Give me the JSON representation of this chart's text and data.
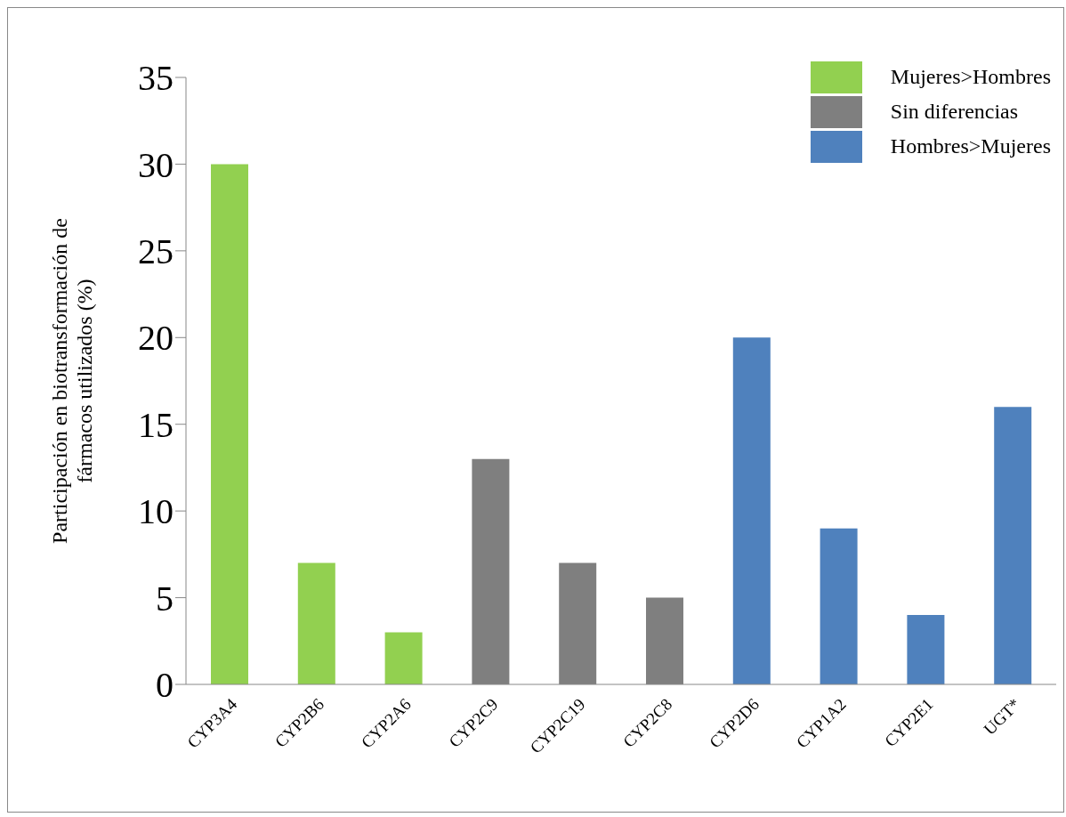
{
  "chart_data": {
    "type": "bar",
    "ylabel": "Participación en biotransformación de fármacos utilizados (%)",
    "categories": [
      "CYP3A4",
      "CYP2B6",
      "CYP2A6",
      "CYP2C9",
      "CYP2C19",
      "CYP2C8",
      "CYP2D6",
      "CYP1A2",
      "CYP2E1",
      "UGT*"
    ],
    "series": [
      {
        "name": "Mujeres>Hombres",
        "color": "#92d050",
        "values": [
          30,
          7,
          3,
          null,
          null,
          null,
          null,
          null,
          null,
          null
        ]
      },
      {
        "name": "Sin diferencias",
        "color": "#7f7f7f",
        "values": [
          null,
          null,
          null,
          13,
          7,
          5,
          null,
          null,
          null,
          null
        ]
      },
      {
        "name": "Hombres>Mujeres",
        "color": "#4f81bd",
        "values": [
          null,
          null,
          null,
          null,
          null,
          null,
          20,
          9,
          4,
          16
        ]
      }
    ],
    "stacked": true,
    "ylim": [
      0,
      35
    ],
    "yticks": [
      0,
      5,
      10,
      15,
      20,
      25,
      30,
      35
    ],
    "grid": false,
    "legend": "top right"
  }
}
